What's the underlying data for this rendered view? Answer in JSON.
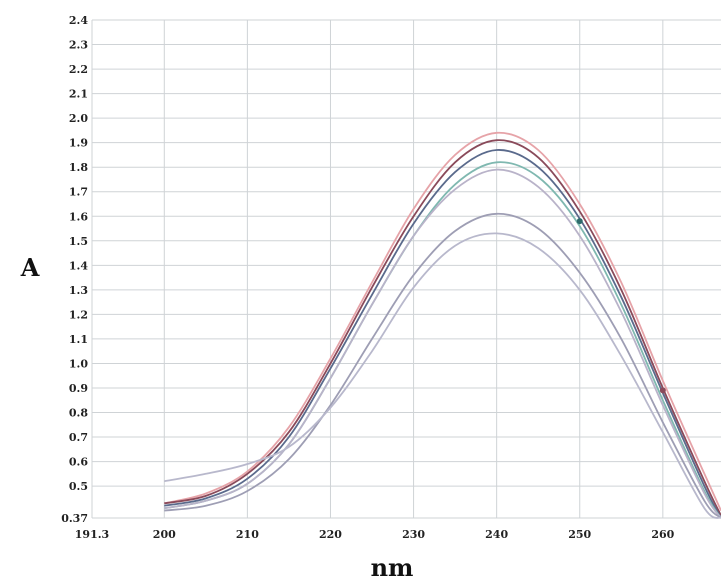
{
  "chart_data": {
    "type": "line",
    "title": "",
    "xlabel": "nm",
    "ylabel": "A",
    "xlim": [
      191.3,
      267
    ],
    "ylim": [
      0.37,
      2.4
    ],
    "x_ticks": [
      {
        "value": 191.3,
        "label": "191.3"
      },
      {
        "value": 200,
        "label": "200"
      },
      {
        "value": 210,
        "label": "210"
      },
      {
        "value": 220,
        "label": "220"
      },
      {
        "value": 230,
        "label": "230"
      },
      {
        "value": 240,
        "label": "240"
      },
      {
        "value": 250,
        "label": "250"
      },
      {
        "value": 260,
        "label": "260"
      }
    ],
    "y_ticks": [
      {
        "value": 0.37,
        "label": "0.37"
      },
      {
        "value": 0.5,
        "label": "0.5"
      },
      {
        "value": 0.6,
        "label": "0.6"
      },
      {
        "value": 0.7,
        "label": "0.7"
      },
      {
        "value": 0.8,
        "label": "0.8"
      },
      {
        "value": 0.9,
        "label": "0.9"
      },
      {
        "value": 1.0,
        "label": "1.0"
      },
      {
        "value": 1.1,
        "label": "1.1"
      },
      {
        "value": 1.2,
        "label": "1.2"
      },
      {
        "value": 1.3,
        "label": "1.3"
      },
      {
        "value": 1.4,
        "label": "1.4"
      },
      {
        "value": 1.5,
        "label": "1.5"
      },
      {
        "value": 1.6,
        "label": "1.6"
      },
      {
        "value": 1.7,
        "label": "1.7"
      },
      {
        "value": 1.8,
        "label": "1.8"
      },
      {
        "value": 1.9,
        "label": "1.9"
      },
      {
        "value": 2.0,
        "label": "2.0"
      },
      {
        "value": 2.1,
        "label": "2.1"
      },
      {
        "value": 2.2,
        "label": "2.2"
      },
      {
        "value": 2.3,
        "label": "2.3"
      },
      {
        "value": 2.4,
        "label": "2.4"
      }
    ],
    "grid": true,
    "x": [
      200,
      205,
      210,
      215,
      220,
      225,
      230,
      235,
      240,
      245,
      250,
      255,
      260,
      265,
      267
    ],
    "series": [
      {
        "color": "#e6a3a8",
        "values": [
          0.43,
          0.47,
          0.56,
          0.74,
          1.02,
          1.33,
          1.63,
          1.85,
          1.94,
          1.87,
          1.65,
          1.33,
          0.93,
          0.55,
          0.4
        ]
      },
      {
        "color": "#8a4a5a",
        "values": [
          0.43,
          0.46,
          0.55,
          0.72,
          1.0,
          1.31,
          1.6,
          1.82,
          1.91,
          1.84,
          1.62,
          1.3,
          0.9,
          0.52,
          0.38
        ]
      },
      {
        "color": "#5a6a8c",
        "values": [
          0.42,
          0.45,
          0.53,
          0.7,
          0.98,
          1.28,
          1.57,
          1.78,
          1.87,
          1.8,
          1.59,
          1.27,
          0.88,
          0.5,
          0.37
        ]
      },
      {
        "color": "#7fb8b0",
        "values": [
          0.41,
          0.44,
          0.51,
          0.67,
          0.94,
          1.24,
          1.52,
          1.73,
          1.82,
          1.76,
          1.56,
          1.24,
          0.85,
          0.48,
          0.37
        ]
      },
      {
        "color": "#b9b3c9",
        "values": [
          0.41,
          0.44,
          0.51,
          0.67,
          0.94,
          1.24,
          1.52,
          1.71,
          1.79,
          1.72,
          1.52,
          1.21,
          0.83,
          0.47,
          0.37
        ]
      },
      {
        "color": "#9e9eb4",
        "values": [
          0.4,
          0.42,
          0.48,
          0.61,
          0.83,
          1.1,
          1.36,
          1.54,
          1.61,
          1.55,
          1.37,
          1.1,
          0.76,
          0.44,
          0.37
        ]
      },
      {
        "color": "#b8b8cc",
        "values": [
          0.52,
          0.55,
          0.59,
          0.66,
          0.82,
          1.05,
          1.31,
          1.48,
          1.53,
          1.47,
          1.3,
          1.03,
          0.72,
          0.41,
          0.37
        ]
      }
    ],
    "markers": [
      {
        "x": 250,
        "y": 1.58,
        "color": "#2e6b6b"
      },
      {
        "x": 260,
        "y": 0.89,
        "color": "#8a4a5a"
      }
    ]
  }
}
